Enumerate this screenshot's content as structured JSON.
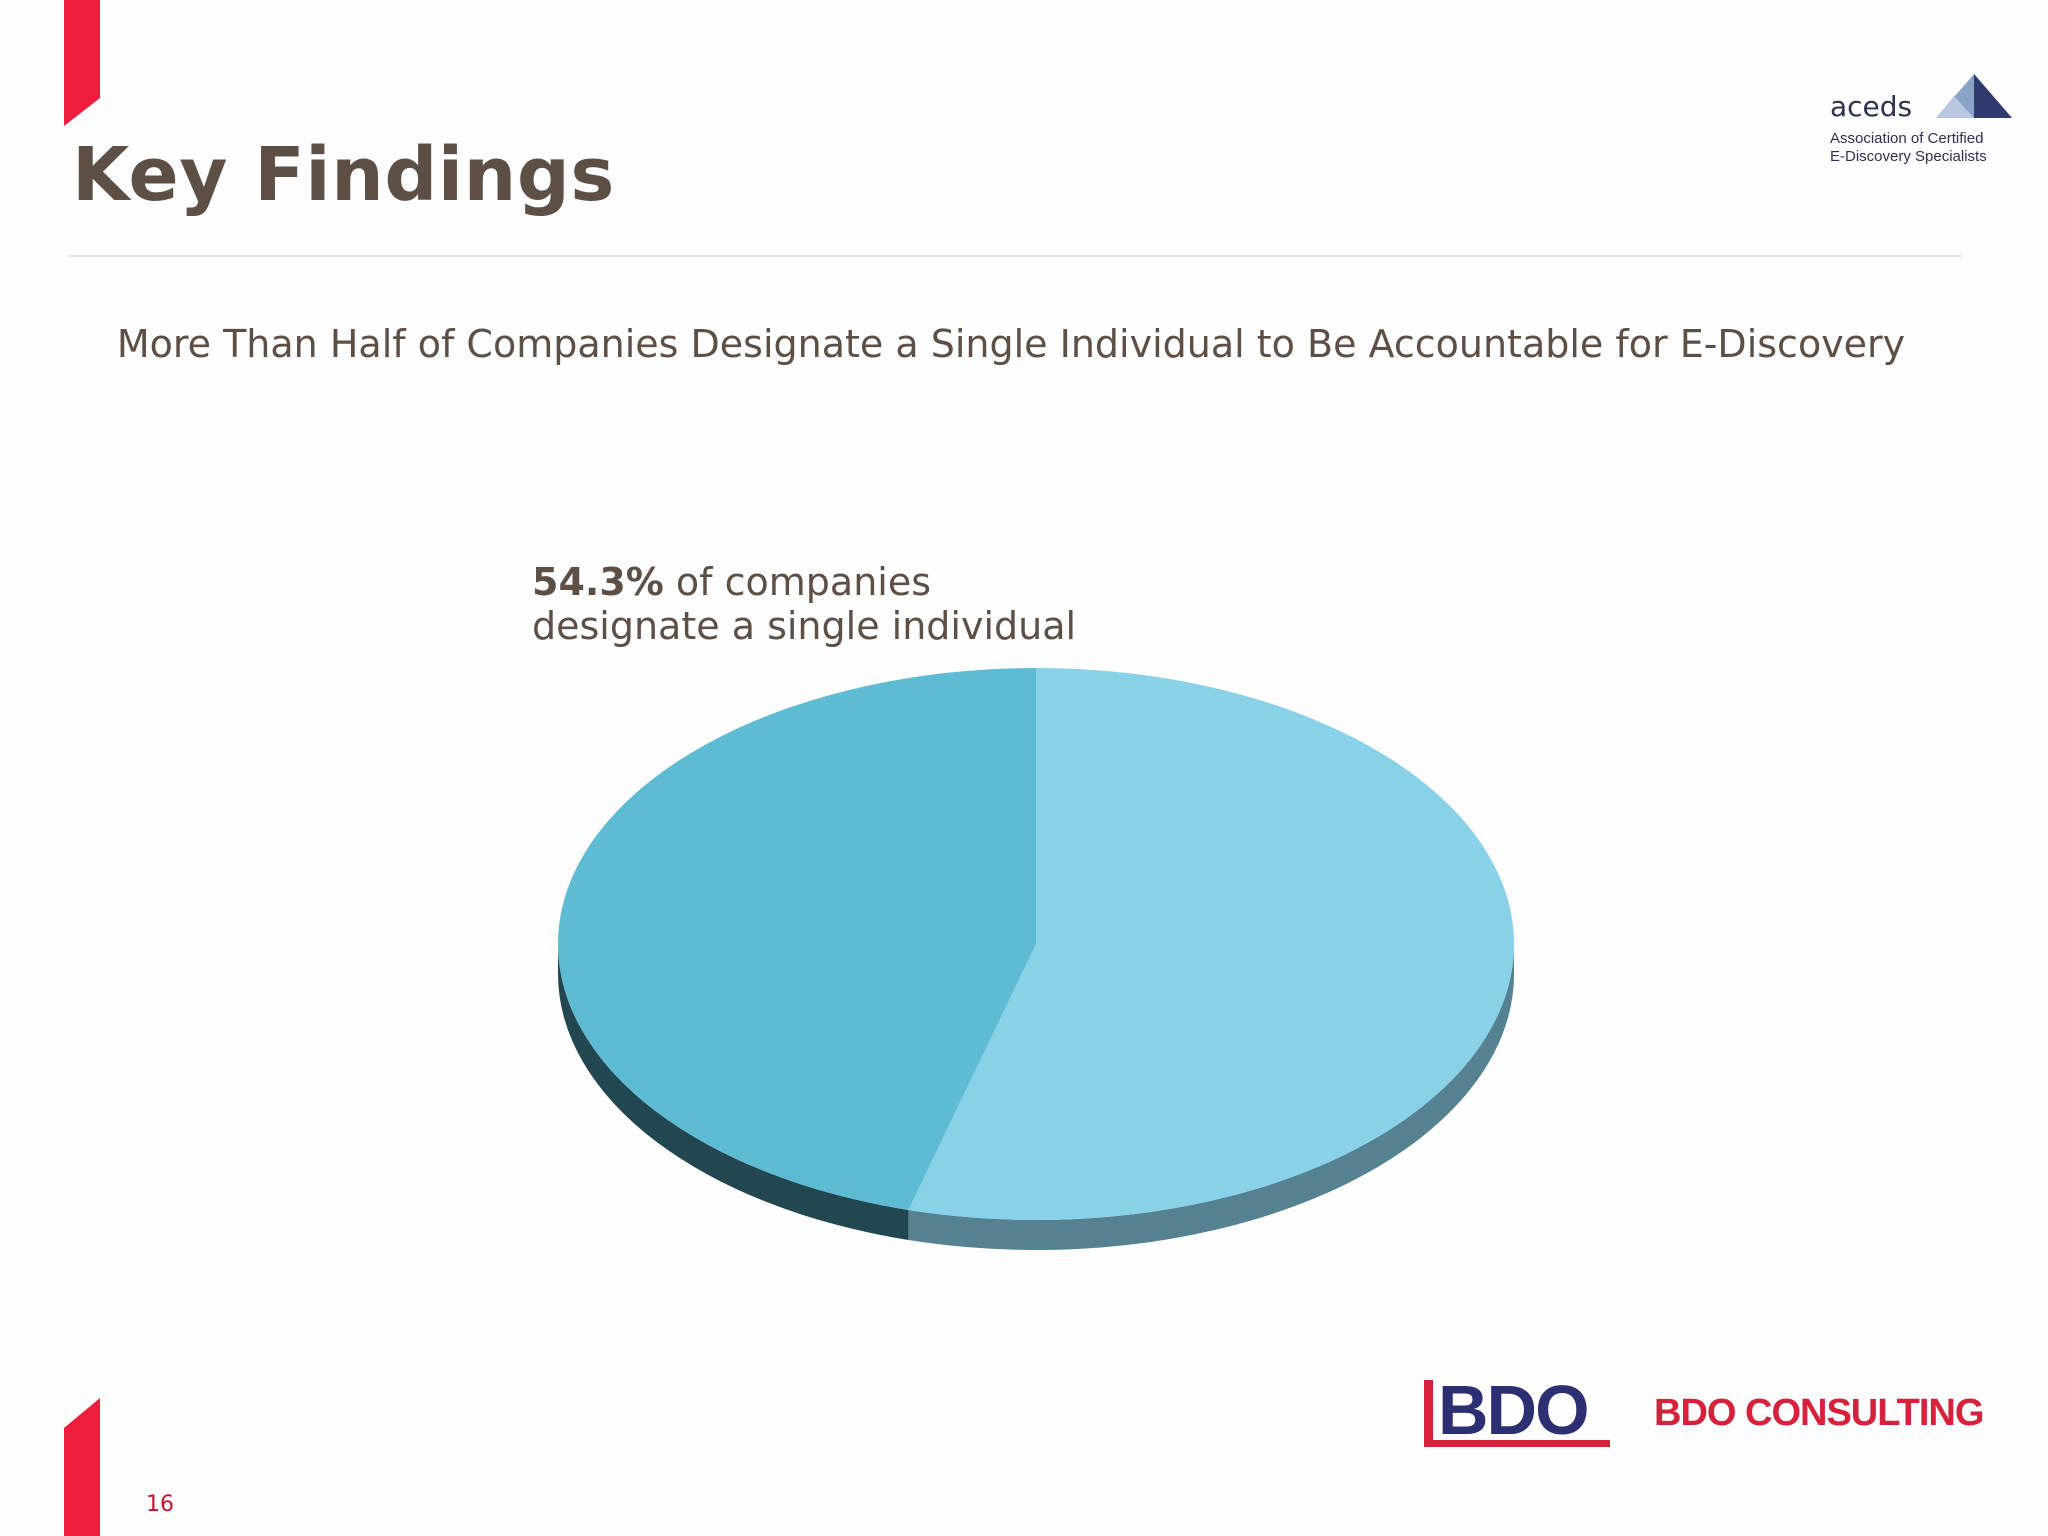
{
  "page": {
    "title": "Key Findings",
    "number": "16"
  },
  "logos": {
    "aceds_name": "aceds",
    "aceds_tagline_1": "Association of Certified",
    "aceds_tagline_2": "E-Discovery Specialists",
    "bdo_mark": "BDO",
    "bdo_consulting": "BDO CONSULTING"
  },
  "chart_data": {
    "type": "pie",
    "title": "More Than Half of Companies Designate a Single Individual to Be Accountable for E-Discovery",
    "slices": [
      {
        "label": "Single individual",
        "value": 54.3,
        "color": "#89d1e8"
      },
      {
        "label": "",
        "value": 45.7,
        "color": "#5dbcd3"
      }
    ],
    "annotation": {
      "value_text": "54.3%",
      "line1_rest": " of companies",
      "line2": "designate a single individual"
    },
    "legend": "none"
  }
}
